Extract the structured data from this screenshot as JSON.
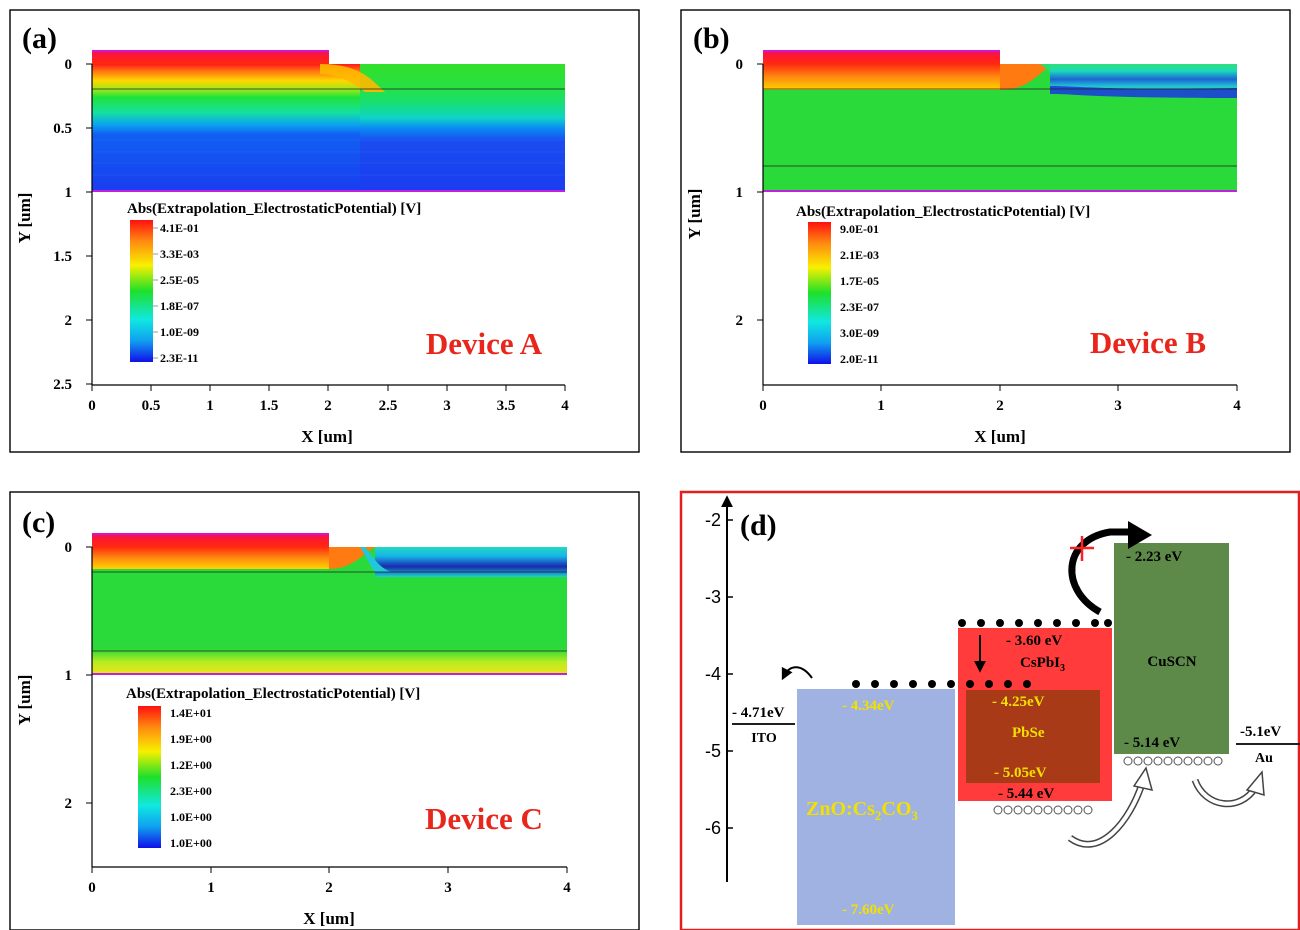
{
  "panels": {
    "a": {
      "tag": "(a)",
      "device": "Device A",
      "xlabel": "X [um]",
      "ylabel": "Y [um]",
      "xticks": [
        "0",
        "0.5",
        "1",
        "1.5",
        "2",
        "2.5",
        "3",
        "3.5",
        "4"
      ],
      "yticks": [
        "0",
        "0.5",
        "1",
        "1.5",
        "2",
        "2.5"
      ],
      "legend_title": "Abs(Extrapolation_ElectrostaticPotential) [V]",
      "legend_values": [
        "4.1E-01",
        "3.3E-03",
        "2.5E-05",
        "1.8E-07",
        "1.0E-09",
        "2.3E-11"
      ]
    },
    "b": {
      "tag": "(b)",
      "device": "Device B",
      "xlabel": "X [um]",
      "ylabel": "Y [um]",
      "xticks": [
        "0",
        "1",
        "2",
        "3",
        "4"
      ],
      "yticks": [
        "0",
        "1",
        "2"
      ],
      "legend_title": "Abs(Extrapolation_ElectrostaticPotential) [V]",
      "legend_values": [
        "9.0E-01",
        "2.1E-03",
        "1.7E-05",
        "2.3E-07",
        "3.0E-09",
        "2.0E-11"
      ]
    },
    "c": {
      "tag": "(c)",
      "device": "Device C",
      "xlabel": "X [um]",
      "ylabel": "Y [um]",
      "xticks": [
        "0",
        "1",
        "2",
        "3",
        "4"
      ],
      "yticks": [
        "0",
        "1",
        "2"
      ],
      "legend_title": "Abs(Extrapolation_ElectrostaticPotential) [V]",
      "legend_values": [
        "1.4E+01",
        "1.9E+00",
        "1.2E+00",
        "2.3E+00",
        "1.0E+00",
        "1.0E+00"
      ]
    },
    "d": {
      "tag": "(d)",
      "yticks": [
        "-2",
        "-3",
        "-4",
        "-5",
        "-6"
      ],
      "ito_value": "- 4.71eV",
      "ito_label": "ITO",
      "au_value": "-5.1eV",
      "au_label": "Au",
      "zno_top": "- 4.34eV",
      "zno_label": "ZnO:Cs",
      "zno_sub1": "2",
      "zno_mid": "CO",
      "zno_sub2": "3",
      "zno_bottom": "- 7.60eV",
      "cspbi3_top": "- 3.60 eV",
      "cspbi3_label": "CsPbI",
      "cspbi3_sub": "3",
      "cspbi3_bottom": "- 5.44 eV",
      "pbse_top": "- 4.25eV",
      "pbse_label": "PbSe",
      "pbse_bottom": "- 5.05eV",
      "cuscn_top": "- 2.23 eV",
      "cuscn_label": "CuSCN",
      "cuscn_bottom": "- 5.14 eV"
    }
  },
  "colors": {
    "zno": "#9fb2e2",
    "cspbi3": "#ff3b3b",
    "pbse": "#a83a18",
    "cuscn": "#5d8a48",
    "label_yellow": "#f2e100",
    "device_red": "#e8261c",
    "frame_red": "#e02020"
  }
}
